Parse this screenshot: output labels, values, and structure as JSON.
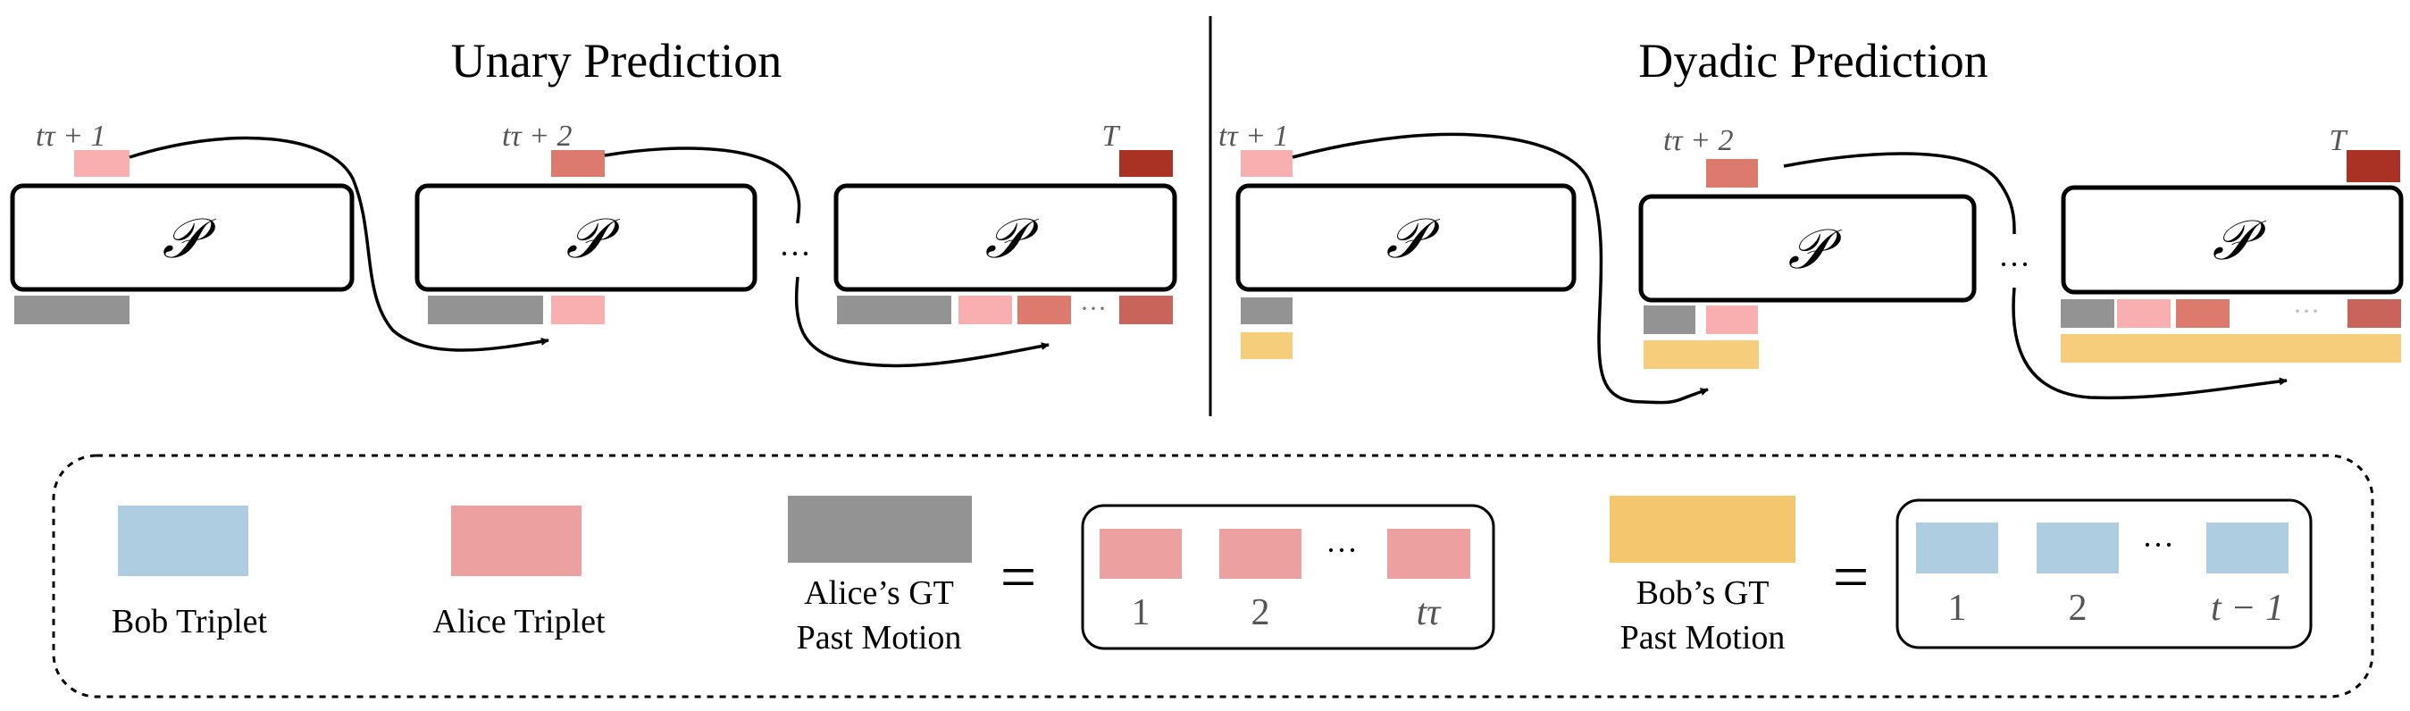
{
  "titles": {
    "unary": "Unary Prediction",
    "dyadic": "Dyadic Prediction"
  },
  "block_symbol": "𝒫",
  "labels": {
    "t_tau_plus_1": "tτ + 1",
    "t_tau_plus_2": "tτ + 2",
    "T": "T"
  },
  "ellipsis": "···",
  "legend": {
    "bob_triplet": "Bob Triplet",
    "alice_triplet": "Alice Triplet",
    "alice_gt_line1": "Alice’s GT",
    "alice_gt_line2": "Past Motion",
    "bob_gt_line1": "Bob’s GT",
    "bob_gt_line2": "Past Motion",
    "equals": "=",
    "alice_seq": [
      "1",
      "2",
      "tτ"
    ],
    "bob_seq": [
      "1",
      "2",
      "t − 1"
    ]
  },
  "colors": {
    "bob_blue": "#aecde0",
    "alice_pink": "#eca0a0",
    "alice_light": "#f9aeb0",
    "alice_mid": "#dc7a6e",
    "alice_dark": "#a93224",
    "gt_gray": "#939393",
    "bob_gold": "#f6cd7a"
  }
}
